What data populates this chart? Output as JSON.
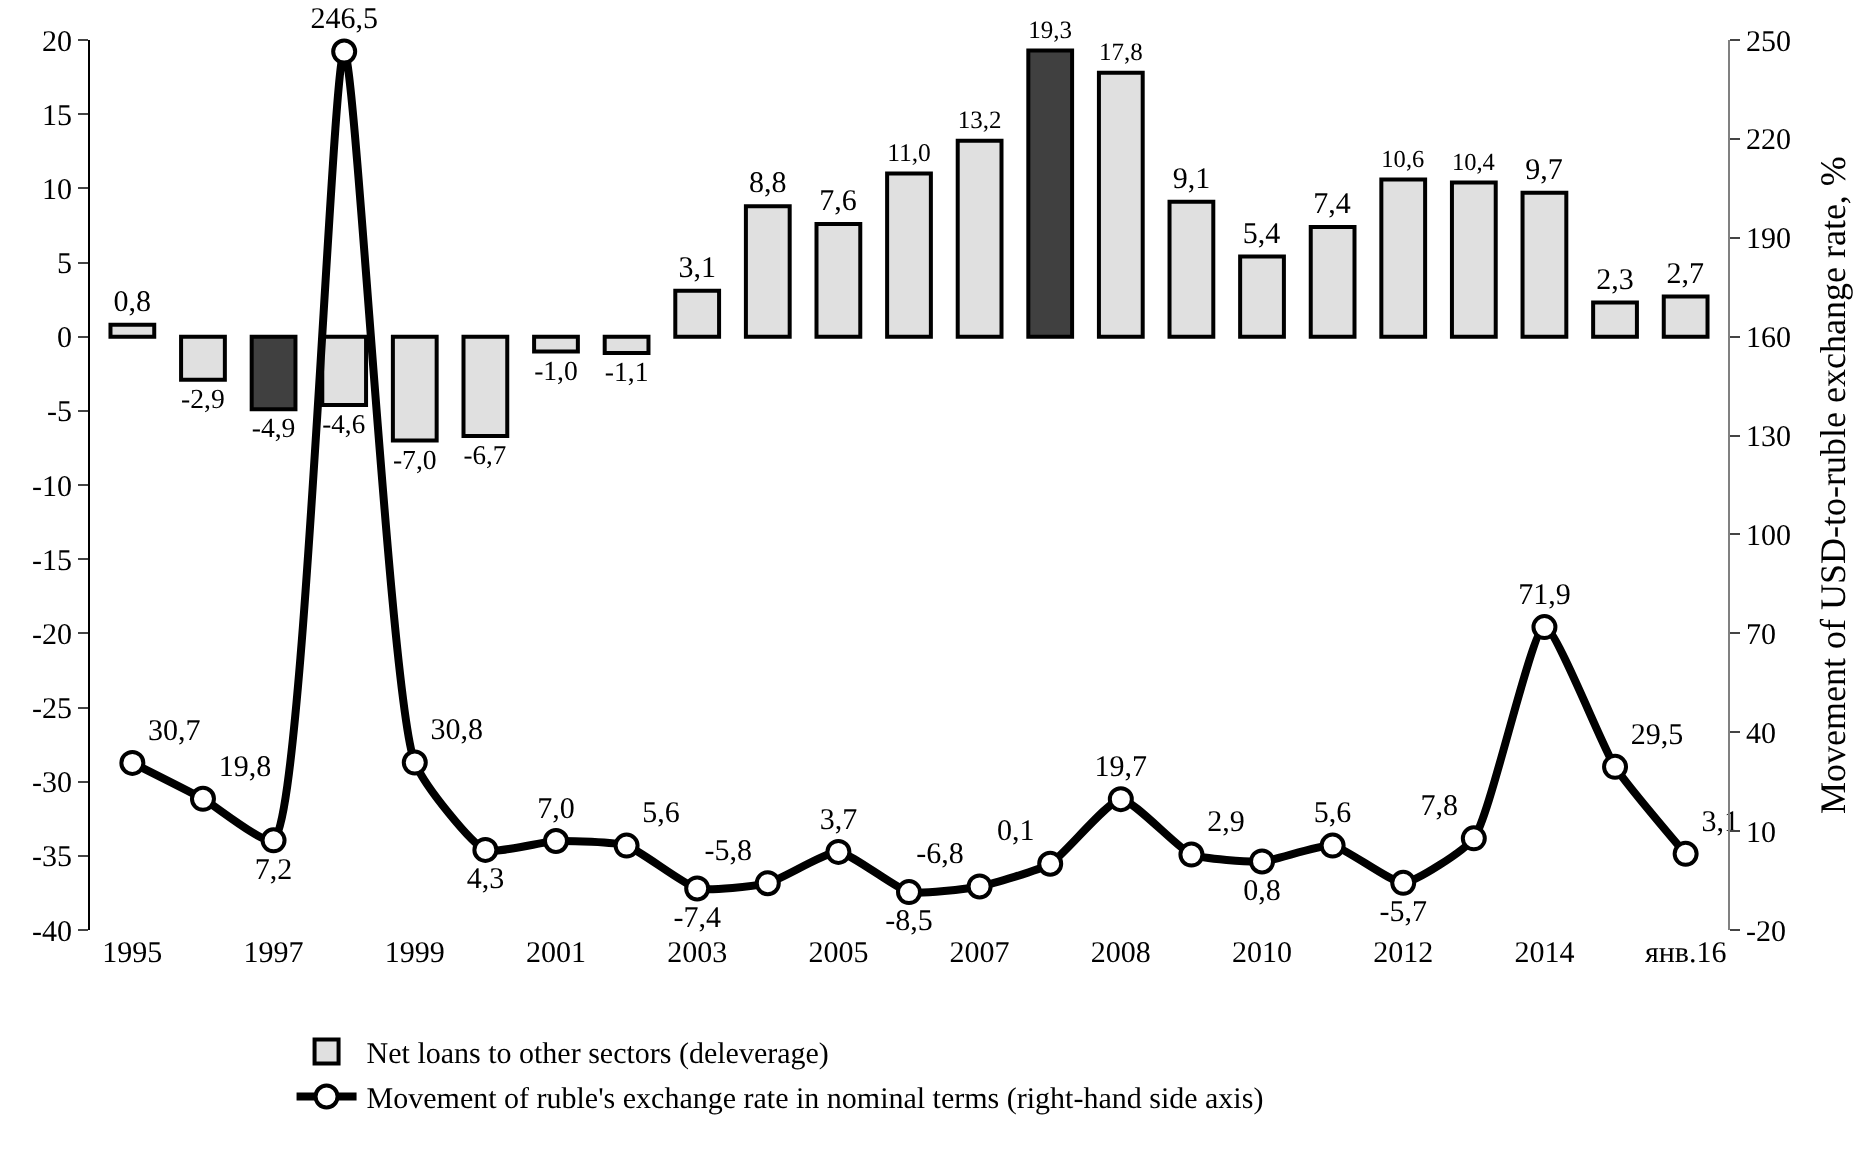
{
  "chart_data": {
    "type": "bar",
    "y2label": "Movement of USD-to-ruble exchange rate, %",
    "categories": [
      "1995",
      null,
      "1997",
      null,
      "1999",
      null,
      "2001",
      null,
      "2003",
      null,
      "2005",
      null,
      "2007",
      null,
      "2008",
      null,
      "2010",
      null,
      "2012",
      null,
      "2014",
      null,
      "янв.16"
    ],
    "series": [
      {
        "name": "Net loans to other sectors (deleverage)",
        "color": "#e0e0e0",
        "colors": [
          "#e0e0e0",
          "#e0e0e0",
          "#404040",
          "#e0e0e0",
          "#e0e0e0",
          "#e0e0e0",
          "#e0e0e0",
          "#e0e0e0",
          "#e0e0e0",
          "#e0e0e0",
          "#e0e0e0",
          "#e0e0e0",
          "#e0e0e0",
          "#404040",
          "#e0e0e0",
          "#e0e0e0",
          "#e0e0e0",
          "#e0e0e0",
          "#e0e0e0",
          "#e0e0e0",
          "#e0e0e0",
          "#e0e0e0",
          "#e0e0e0"
        ],
        "values": [
          0.8,
          -2.9,
          -4.9,
          -4.6,
          -7.0,
          -6.7,
          -1.0,
          -1.1,
          3.1,
          8.8,
          7.6,
          11.0,
          13.2,
          19.3,
          17.8,
          9.1,
          5.4,
          7.4,
          10.6,
          10.4,
          9.7,
          2.3,
          2.7
        ],
        "value_labels": [
          "0,8",
          "-2,9",
          "-4,9",
          "-4,6",
          "-7,0",
          "-6,7",
          "-1,0",
          "-1,1",
          "3,1",
          "8,8",
          "7,6",
          "11,0",
          "13,2",
          "19,3",
          "17,8",
          "9,1",
          "5,4",
          "7,4",
          "10,6",
          "10,4",
          "9,7",
          "2,3",
          "2,7"
        ]
      },
      {
        "name": "Movement of ruble's exchange rate in nominal terms (right-hand side axis)",
        "type": "line",
        "axis": "y2",
        "color": "#000000",
        "marker": "circle",
        "values": [
          30.7,
          19.8,
          7.2,
          246.5,
          30.8,
          4.3,
          7.0,
          5.6,
          -7.4,
          -5.8,
          3.7,
          -8.5,
          -6.8,
          0.1,
          19.7,
          2.9,
          0.8,
          5.6,
          -5.7,
          7.8,
          71.9,
          29.5,
          3.1
        ],
        "value_labels": [
          "30,7",
          "19,8",
          "7,2",
          "246,5",
          "30,8",
          "4,3",
          "7,0",
          "5,6",
          "-7,4",
          "-5,8",
          "3,7",
          "-8,5",
          "-6,8",
          "0,1",
          "19,7",
          "2,9",
          "0,8",
          "5,6",
          "-5,7",
          "7,8",
          "71,9",
          "29,5",
          "3,1"
        ]
      }
    ],
    "ylim": [
      -40,
      20
    ],
    "yticks": [
      -40,
      -35,
      -30,
      -25,
      -20,
      -15,
      -10,
      -5,
      0,
      5,
      10,
      15,
      20
    ],
    "y2lim": [
      -20,
      250
    ],
    "y2ticks": [
      -20,
      10,
      40,
      70,
      100,
      130,
      160,
      190,
      220,
      250
    ],
    "legend": "bottom"
  }
}
